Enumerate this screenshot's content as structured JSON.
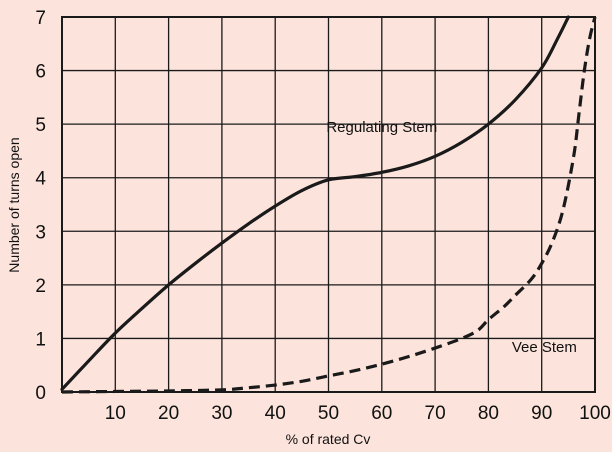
{
  "chart_data": {
    "type": "line",
    "title": "",
    "xlabel": "% of rated Cv",
    "ylabel": "Number of turns open",
    "xlim": [
      0,
      100
    ],
    "ylim": [
      0,
      7
    ],
    "x_ticks": [
      "10",
      "20",
      "30",
      "40",
      "50",
      "60",
      "70",
      "80",
      "90",
      "100"
    ],
    "y_ticks": [
      "0",
      "1",
      "2",
      "3",
      "4",
      "5",
      "6",
      "7"
    ],
    "grid": true,
    "legend": "none",
    "series": [
      {
        "name": "Regulating Stem",
        "style": "solid",
        "color": "#1a1a1a",
        "x": [
          0,
          5,
          10,
          15,
          20,
          25,
          30,
          35,
          40,
          45,
          50,
          55,
          60,
          65,
          70,
          75,
          80,
          85,
          90,
          93,
          95
        ],
        "y": [
          0.05,
          0.58,
          1.1,
          1.56,
          2.0,
          2.4,
          2.78,
          3.14,
          3.47,
          3.76,
          3.96,
          4.02,
          4.1,
          4.22,
          4.4,
          4.66,
          5.0,
          5.45,
          6.05,
          6.6,
          7.0
        ]
      },
      {
        "name": "Vee Stem",
        "style": "dashed",
        "color": "#1a1a1a",
        "x": [
          0,
          10,
          20,
          30,
          35,
          40,
          45,
          50,
          55,
          60,
          65,
          70,
          75,
          78,
          80,
          83,
          85,
          88,
          90,
          92,
          94,
          96,
          97,
          98,
          99,
          100
        ],
        "y": [
          0.0,
          0.01,
          0.02,
          0.04,
          0.08,
          0.13,
          0.2,
          0.3,
          0.4,
          0.52,
          0.66,
          0.82,
          1.0,
          1.15,
          1.35,
          1.6,
          1.8,
          2.1,
          2.4,
          2.8,
          3.4,
          4.4,
          5.2,
          6.0,
          6.6,
          7.0
        ]
      }
    ],
    "annotations": [
      {
        "text": "Regulating Stem",
        "x": 60,
        "y": 4.85
      },
      {
        "text": "Vee Stem",
        "x": 90.5,
        "y": 0.75
      }
    ]
  }
}
